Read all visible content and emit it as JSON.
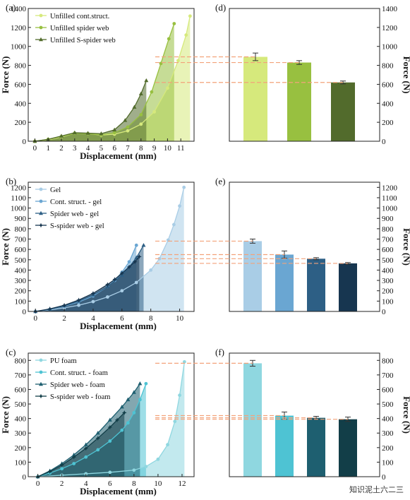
{
  "watermark": "知识泥土六二三",
  "colors": {
    "a": [
      "#d6e97c",
      "#98c040",
      "#526b2c"
    ],
    "b": [
      "#a9cde6",
      "#6aa6d2",
      "#2d5f85",
      "#173650"
    ],
    "c": [
      "#8fd7e0",
      "#4ec3d3",
      "#1e5f70",
      "#123e48"
    ],
    "dash": "#f3a27a"
  },
  "chart_data": [
    {
      "panel": "(a)",
      "type": "line",
      "xlabel": "Displacement (mm)",
      "ylabel": "Force (N)",
      "xlim": [
        -0.5,
        12
      ],
      "ylim": [
        0,
        1400
      ],
      "xticks": [
        0,
        1,
        2,
        3,
        4,
        5,
        6,
        7,
        8,
        9,
        10,
        11
      ],
      "yticks": [
        0,
        200,
        400,
        600,
        800,
        1000,
        1200,
        1400
      ],
      "legend": "top-left",
      "series": [
        {
          "name": "Unfilled cont.struct.",
          "marker": "circle",
          "x": [
            0,
            1,
            2,
            3,
            4,
            5,
            6,
            7,
            8,
            9,
            10,
            10.8,
            11.4,
            11.7
          ],
          "y": [
            0,
            15,
            45,
            85,
            80,
            65,
            75,
            110,
            180,
            310,
            560,
            850,
            1120,
            1320
          ]
        },
        {
          "name": "Unfilled spider web",
          "marker": "circle",
          "x": [
            0,
            1,
            2,
            3,
            4,
            5,
            6,
            7,
            8,
            8.8,
            9.5,
            10.1,
            10.5
          ],
          "y": [
            0,
            20,
            50,
            85,
            80,
            70,
            90,
            150,
            280,
            520,
            820,
            1080,
            1240
          ]
        },
        {
          "name": "Unfilled S-spider web",
          "marker": "triangle",
          "x": [
            0,
            1,
            2,
            3,
            4,
            5,
            6,
            6.8,
            7.5,
            8.0,
            8.4
          ],
          "y": [
            0,
            20,
            55,
            90,
            85,
            80,
            120,
            220,
            360,
            500,
            640
          ]
        }
      ]
    },
    {
      "panel": "(d)",
      "type": "bar",
      "ylabel": "Force (N)",
      "ylim": [
        0,
        1400
      ],
      "yticks": [
        0,
        200,
        400,
        600,
        800,
        1000,
        1200,
        1400
      ],
      "values": [
        890,
        830,
        620
      ],
      "errors": [
        40,
        20,
        15
      ]
    },
    {
      "panel": "(b)",
      "type": "line",
      "xlabel": "Displacement (mm)",
      "ylabel": "Force (N)",
      "xlim": [
        -0.5,
        11
      ],
      "ylim": [
        0,
        1250
      ],
      "xticks": [
        0,
        2,
        4,
        6,
        8,
        10
      ],
      "yticks": [
        0,
        100,
        200,
        300,
        400,
        500,
        600,
        700,
        800,
        900,
        1000,
        1100,
        1200
      ],
      "legend": "top-left",
      "series": [
        {
          "name": "Gel",
          "marker": "circle",
          "x": [
            0,
            1,
            2,
            3,
            4,
            5,
            6,
            7,
            8,
            8.6,
            9.2,
            9.6,
            10.0,
            10.3
          ],
          "y": [
            0,
            15,
            35,
            60,
            95,
            140,
            200,
            280,
            400,
            510,
            690,
            840,
            1020,
            1200
          ]
        },
        {
          "name": "Cont. struct. - gel",
          "marker": "circle",
          "x": [
            0,
            1,
            2,
            3,
            4,
            5,
            5.5,
            6,
            6.5,
            7.0
          ],
          "y": [
            0,
            20,
            50,
            90,
            150,
            240,
            300,
            380,
            480,
            640
          ]
        },
        {
          "name": "Spider web - gel",
          "marker": "triangle",
          "x": [
            0,
            1,
            2,
            3,
            4,
            5,
            6,
            6.5,
            7.0,
            7.5
          ],
          "y": [
            0,
            20,
            55,
            100,
            160,
            240,
            350,
            430,
            520,
            640
          ]
        },
        {
          "name": "S-spider web - gel",
          "marker": "star",
          "x": [
            0,
            1,
            2,
            3,
            4,
            5,
            5.5,
            6,
            6.5,
            6.9,
            7.2
          ],
          "y": [
            0,
            25,
            60,
            110,
            175,
            260,
            310,
            370,
            430,
            480,
            530
          ]
        }
      ]
    },
    {
      "panel": "(e)",
      "type": "bar",
      "ylabel": "Force (N)",
      "ylim": [
        0,
        1250
      ],
      "yticks": [
        0,
        100,
        200,
        300,
        400,
        500,
        600,
        700,
        800,
        900,
        1000,
        1100,
        1200
      ],
      "values": [
        680,
        550,
        510,
        465
      ],
      "errors": [
        20,
        35,
        10,
        8
      ]
    },
    {
      "panel": "(c)",
      "type": "line",
      "xlabel": "Displacement (mm)",
      "ylabel": "Force (N)",
      "xlim": [
        -0.8,
        13
      ],
      "ylim": [
        0,
        850
      ],
      "xticks": [
        0,
        2,
        4,
        6,
        8,
        10,
        12
      ],
      "yticks": [
        0,
        100,
        200,
        300,
        400,
        500,
        600,
        700,
        800
      ],
      "legend": "top-left",
      "series": [
        {
          "name": "PU foam",
          "marker": "circle",
          "x": [
            0,
            2,
            4,
            6,
            8,
            9,
            10,
            10.8,
            11.4,
            11.8,
            12.2
          ],
          "y": [
            0,
            10,
            20,
            30,
            45,
            70,
            120,
            220,
            380,
            560,
            790
          ]
        },
        {
          "name": "Cont. struct. - foam",
          "marker": "circle",
          "x": [
            0,
            1,
            2,
            3,
            4,
            5,
            6,
            7,
            7.5,
            8.0,
            8.5,
            9.0
          ],
          "y": [
            0,
            25,
            55,
            90,
            135,
            185,
            245,
            320,
            370,
            440,
            530,
            640
          ]
        },
        {
          "name": "Spider web - foam",
          "marker": "triangle",
          "x": [
            0,
            1,
            2,
            3,
            4,
            5,
            6,
            7,
            7.5,
            8.0,
            8.5
          ],
          "y": [
            0,
            40,
            90,
            150,
            220,
            300,
            390,
            480,
            530,
            580,
            640
          ]
        },
        {
          "name": "S-spider web - foam",
          "marker": "star",
          "x": [
            0,
            1,
            2,
            3,
            4,
            5,
            6,
            6.6,
            7.2
          ],
          "y": [
            0,
            35,
            80,
            135,
            195,
            265,
            340,
            390,
            440
          ]
        }
      ]
    },
    {
      "panel": "(f)",
      "type": "bar",
      "ylabel": "Force (N)",
      "ylim": [
        0,
        850
      ],
      "yticks": [
        0,
        100,
        200,
        300,
        400,
        500,
        600,
        700,
        800
      ],
      "values": [
        780,
        420,
        405,
        395
      ],
      "errors": [
        20,
        25,
        10,
        15
      ]
    }
  ]
}
